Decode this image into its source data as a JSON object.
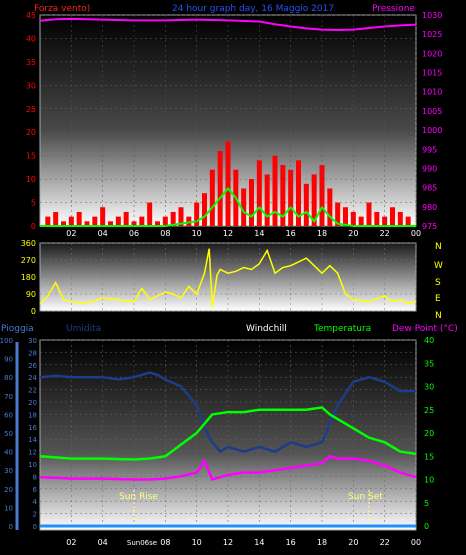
{
  "header": {
    "left_label": "Forza vento)",
    "title": "24 hour graph day, 16 Maggio 2017",
    "right_label": "Pressione"
  },
  "colors": {
    "wind": "#ff0000",
    "wind_avg": "#00ff00",
    "pressure": "#ff00ff",
    "direction": "#ffff00",
    "humidity": "#1e3c8c",
    "temperature": "#00ff00",
    "dewpoint": "#ff00ff",
    "rain": "#1e90ff",
    "axis_blue": "#4a7bd0",
    "white": "#ffffff"
  },
  "x_ticks": [
    "02",
    "04",
    "06",
    "08",
    "10",
    "12",
    "14",
    "16",
    "18",
    "20",
    "22",
    "00"
  ],
  "compass_labels": [
    "N",
    "W",
    "S",
    "E",
    "N"
  ],
  "bottom_header": {
    "rain": "Pioggia",
    "humidity": "Umidita",
    "windchill": "Windchill",
    "temperature": "Temperatura",
    "dewpoint": "Dew Point (°C)"
  },
  "annotations": {
    "sunrise": "Sun Rise",
    "sunset": "Sun Set",
    "sunrise_tick": "Sun06se"
  },
  "chart_data": [
    {
      "type": "line",
      "title": "24 hour graph day, 16 Maggio 2017",
      "ylabel_left": "Forza vento)",
      "ylabel_right": "Pressione",
      "x_unit": "hour",
      "xlim": [
        0,
        24
      ],
      "ylim_left": [
        0,
        45
      ],
      "yticks_left": [
        0,
        5,
        10,
        15,
        20,
        25,
        30,
        35,
        40,
        45
      ],
      "ylim_right": [
        975,
        1030
      ],
      "yticks_right": [
        975,
        980,
        985,
        990,
        995,
        1000,
        1005,
        1010,
        1015,
        1020,
        1025,
        1030
      ],
      "series": [
        {
          "name": "Forza vento",
          "axis": "left",
          "style": "bars",
          "x": [
            0.5,
            1,
            1.5,
            2,
            2.5,
            3,
            3.5,
            4,
            4.5,
            5,
            5.5,
            6,
            6.5,
            7,
            7.5,
            8,
            8.5,
            9,
            9.5,
            10,
            10.5,
            11,
            11.5,
            12,
            12.5,
            13,
            13.5,
            14,
            14.5,
            15,
            15.5,
            16,
            16.5,
            17,
            17.5,
            18,
            18.5,
            19,
            19.5,
            20,
            20.5,
            21,
            21.5,
            22,
            22.5,
            23,
            23.5
          ],
          "values": [
            2,
            3,
            1,
            2,
            3,
            1,
            2,
            4,
            1,
            2,
            3,
            1,
            2,
            5,
            1,
            2,
            3,
            4,
            2,
            5,
            7,
            12,
            16,
            18,
            12,
            8,
            10,
            14,
            11,
            15,
            13,
            12,
            14,
            9,
            11,
            13,
            8,
            5,
            4,
            3,
            2,
            5,
            3,
            2,
            4,
            3,
            2
          ]
        },
        {
          "name": "Media vento",
          "axis": "left",
          "style": "line",
          "x": [
            0,
            8,
            9,
            10,
            10.5,
            11,
            11.5,
            12,
            12.5,
            13,
            13.5,
            14,
            14.5,
            15,
            15.5,
            16,
            16.5,
            17,
            17.5,
            18,
            18.5,
            19,
            20,
            24
          ],
          "values": [
            0,
            0,
            0.5,
            1,
            2,
            4,
            6,
            8,
            6,
            3,
            2,
            4,
            2,
            3,
            2,
            4,
            2,
            3,
            1,
            4,
            2,
            0.5,
            0,
            0
          ]
        },
        {
          "name": "Pressione",
          "axis": "right",
          "style": "line",
          "x": [
            0,
            1,
            2,
            4,
            6,
            8,
            10,
            12,
            14,
            15,
            16,
            17,
            18,
            19,
            20,
            21,
            22,
            23,
            24
          ],
          "values": [
            1028.5,
            1028.9,
            1029,
            1028.8,
            1028.6,
            1028.6,
            1028.8,
            1028.6,
            1028.3,
            1027.6,
            1027,
            1026.5,
            1026.2,
            1026.1,
            1026.2,
            1026.6,
            1027,
            1027.3,
            1027.5
          ]
        }
      ]
    },
    {
      "type": "line",
      "title": "",
      "x_unit": "hour",
      "xlim": [
        0,
        24
      ],
      "ylim": [
        0,
        360
      ],
      "yticks": [
        0,
        90,
        180,
        270,
        360
      ],
      "series": [
        {
          "name": "Direzione vento",
          "x": [
            0,
            0.5,
            1,
            1.5,
            2,
            3,
            4,
            5,
            6,
            6.5,
            7,
            7.5,
            8,
            8.5,
            9,
            9.5,
            10,
            10.5,
            10.8,
            11,
            11.3,
            11.5,
            12,
            12.5,
            13,
            13.5,
            14,
            14.5,
            15,
            15.5,
            16,
            16.5,
            17,
            17.5,
            18,
            18.5,
            19,
            19.5,
            20,
            21,
            22,
            22.5,
            23,
            23.5,
            24
          ],
          "values": [
            40,
            80,
            150,
            60,
            50,
            40,
            70,
            60,
            50,
            120,
            60,
            80,
            100,
            90,
            70,
            130,
            90,
            200,
            330,
            20,
            190,
            220,
            200,
            210,
            230,
            220,
            250,
            320,
            200,
            230,
            240,
            260,
            280,
            240,
            200,
            240,
            200,
            90,
            60,
            50,
            80,
            50,
            60,
            40,
            50
          ]
        }
      ]
    },
    {
      "type": "line",
      "title": "",
      "x_unit": "hour",
      "xlim": [
        0,
        24
      ],
      "ylim_left_rain": [
        0,
        100
      ],
      "yticks_left_rain": [
        0,
        10,
        20,
        30,
        40,
        50,
        60,
        70,
        80,
        90,
        100
      ],
      "ylim_left_humidity": [
        0,
        30
      ],
      "yticks_left_humidity": [
        0,
        2,
        4,
        6,
        8,
        10,
        12,
        14,
        16,
        18,
        20,
        22,
        24,
        26,
        28,
        30
      ],
      "ylim_right": [
        0,
        40
      ],
      "yticks_right": [
        0,
        5,
        10,
        15,
        20,
        25,
        30,
        35,
        40
      ],
      "series": [
        {
          "name": "Umidita",
          "axis": "right",
          "x": [
            0,
            1,
            2,
            3,
            4,
            5,
            6,
            7,
            7.5,
            8,
            9,
            9.5,
            10,
            10.5,
            11,
            11.5,
            12,
            13,
            14,
            15,
            16,
            17,
            18,
            18.5,
            19,
            20,
            21,
            22,
            23,
            24
          ],
          "values": [
            32,
            32.3,
            32,
            32,
            32,
            31.5,
            32,
            33,
            32.5,
            31.5,
            30,
            28,
            26,
            21,
            18,
            16,
            17,
            16,
            17,
            16,
            18,
            17,
            18,
            22,
            26,
            31,
            32,
            31,
            29,
            29
          ]
        },
        {
          "name": "Temperatura",
          "axis": "right",
          "x": [
            0,
            2,
            4,
            6,
            7,
            8,
            9,
            10,
            10.5,
            11,
            12,
            13,
            14,
            15,
            16,
            17,
            18,
            18.5,
            19,
            20,
            21,
            22,
            23,
            24
          ],
          "values": [
            15,
            14.5,
            14.5,
            14.3,
            14.5,
            15,
            17.5,
            20,
            22,
            24,
            24.5,
            24.5,
            25,
            25,
            25,
            25,
            25.5,
            24,
            23,
            21,
            19,
            18,
            16,
            15.5
          ]
        },
        {
          "name": "Dew Point",
          "axis": "right",
          "x": [
            0,
            2,
            4,
            6,
            7,
            8,
            9,
            10,
            10.5,
            11,
            12,
            13,
            14,
            15,
            16,
            17,
            18,
            18.5,
            19,
            20,
            21,
            22,
            23,
            24
          ],
          "values": [
            10.5,
            10.2,
            10.2,
            10,
            10,
            10.2,
            10.7,
            11.5,
            14,
            10,
            11,
            11.5,
            11.5,
            12,
            12.5,
            13,
            13.5,
            15,
            14.5,
            14.5,
            14,
            13,
            11.5,
            10.5
          ]
        },
        {
          "name": "Pioggia",
          "axis": "left_rain",
          "x": [
            0,
            24
          ],
          "values": [
            0,
            0
          ]
        }
      ],
      "annotations": [
        {
          "label": "Sun Rise",
          "x": 6
        },
        {
          "label": "Sun Set",
          "x": 21
        }
      ]
    }
  ]
}
